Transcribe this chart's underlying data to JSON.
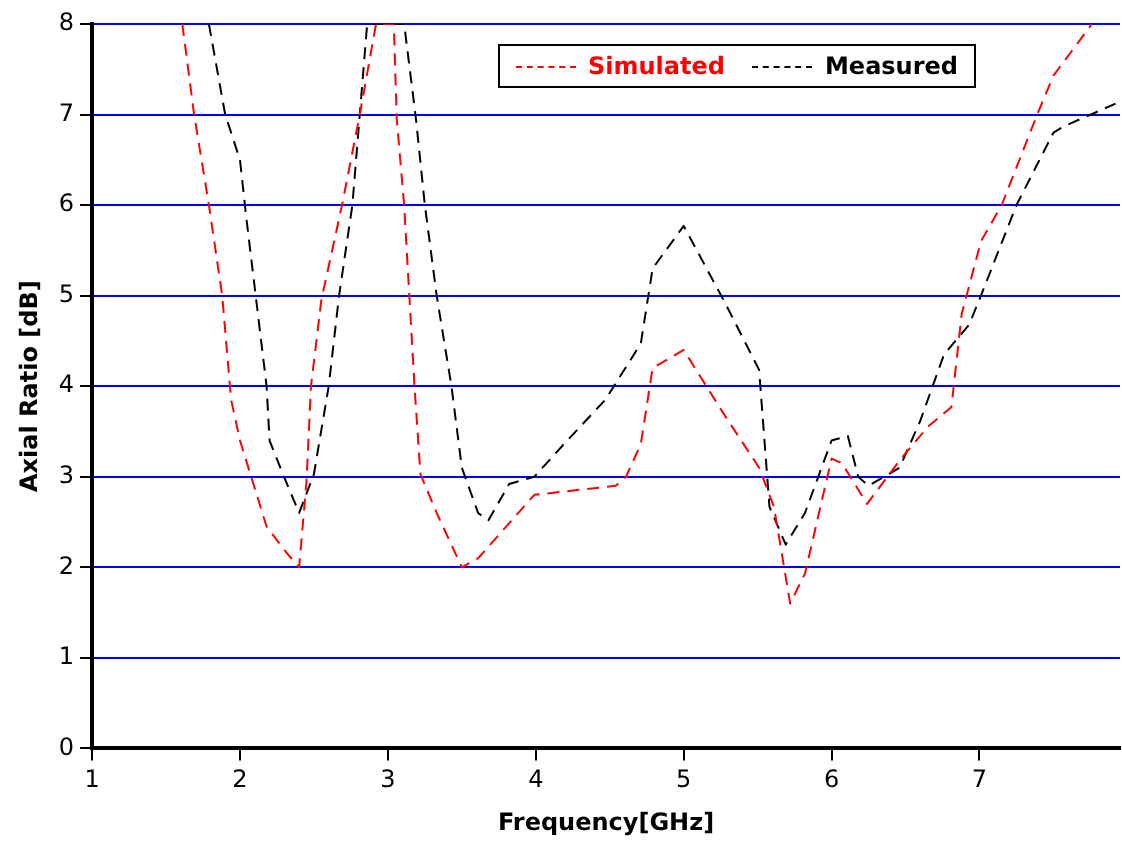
{
  "chart_data": {
    "type": "line",
    "xlabel": "Frequency[GHz]",
    "ylabel": "Axial Ratio [dB]",
    "xlim": [
      1,
      7.95
    ],
    "xticks": [
      1,
      2,
      3,
      4,
      5,
      6,
      7
    ],
    "ylim": [
      0,
      8
    ],
    "yticks": [
      0,
      1,
      2,
      3,
      4,
      5,
      6,
      7,
      8
    ],
    "grid": "y",
    "legend": "top right",
    "marker": "none",
    "line_style": "dashed",
    "series": [
      {
        "name": "Simulated",
        "color": "#ff0000",
        "x": [
          1.61,
          1.69,
          1.79,
          1.88,
          1.94,
          2.0,
          2.18,
          2.32,
          2.4,
          2.45,
          2.48,
          2.55,
          2.69,
          2.81,
          2.92,
          3.04,
          3.06,
          3.11,
          3.18,
          3.22,
          3.33,
          3.5,
          3.61,
          3.99,
          4.54,
          4.61,
          4.71,
          4.79,
          5.0,
          5.28,
          5.51,
          5.61,
          5.72,
          5.82,
          6.0,
          6.07,
          6.24,
          6.46,
          6.65,
          6.81,
          6.88,
          7.01,
          7.15,
          7.39,
          7.5,
          7.76
        ],
        "values": [
          8,
          7,
          6,
          5,
          3.85,
          3.4,
          2.45,
          2.15,
          2.0,
          2.95,
          4.0,
          4.95,
          6.0,
          7.0,
          8,
          8,
          6.95,
          6.0,
          4.0,
          3.03,
          2.6,
          2.0,
          2.1,
          2.8,
          2.9,
          3.0,
          3.36,
          4.2,
          4.4,
          3.67,
          3.1,
          2.67,
          1.6,
          1.93,
          3.2,
          3.15,
          2.7,
          3.18,
          3.55,
          3.77,
          4.8,
          5.6,
          6.0,
          7.0,
          7.43,
          8
        ]
      },
      {
        "name": "Measured",
        "color": "#000000",
        "x": [
          1.79,
          1.9,
          2.0,
          2.04,
          2.11,
          2.18,
          2.2,
          2.29,
          2.4,
          2.5,
          2.6,
          2.67,
          2.76,
          2.81,
          2.86,
          3.11,
          3.19,
          3.25,
          3.33,
          3.43,
          3.5,
          3.61,
          3.68,
          3.82,
          3.99,
          4.19,
          4.47,
          4.71,
          4.79,
          5.0,
          5.28,
          5.51,
          5.58,
          5.69,
          5.82,
          6.0,
          6.11,
          6.18,
          6.25,
          6.46,
          6.6,
          6.76,
          6.93,
          7.01,
          7.25,
          7.5,
          7.57,
          7.92
        ],
        "values": [
          8,
          7.0,
          6.5,
          5.9,
          4.95,
          4.0,
          3.4,
          3.03,
          2.6,
          3.03,
          4.0,
          5.0,
          6.0,
          7,
          8,
          8,
          6.95,
          6.0,
          5.0,
          4.0,
          3.1,
          2.6,
          2.52,
          2.92,
          3.0,
          3.36,
          3.85,
          4.47,
          5.3,
          5.77,
          4.92,
          4.18,
          2.67,
          2.25,
          2.6,
          3.4,
          3.45,
          3.0,
          2.9,
          3.1,
          3.62,
          4.35,
          4.68,
          5.0,
          6.0,
          6.8,
          6.87,
          7.12
        ]
      }
    ]
  }
}
